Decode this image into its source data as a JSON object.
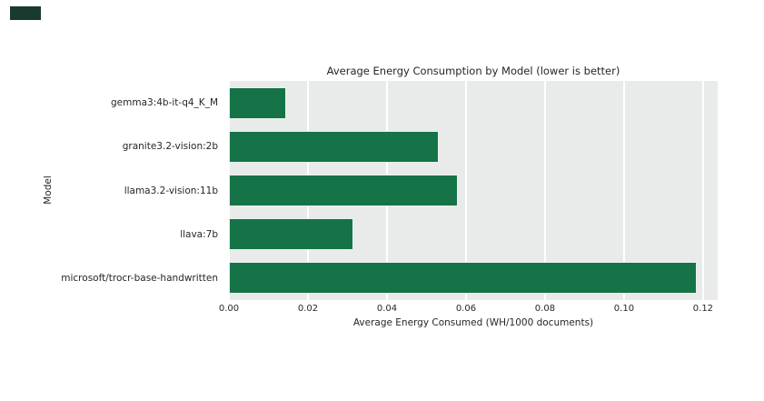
{
  "figure": {
    "background": "#ffffff",
    "corner_mark_color": "#1b3a2e"
  },
  "chart_data": {
    "type": "bar",
    "orientation": "horizontal",
    "title": "Average Energy Consumption by Model (lower is better)",
    "categories": [
      "gemma3:4b-it-q4_K_M",
      "granite3.2-vision:2b",
      "llama3.2-vision:11b",
      "llava:7b",
      "microsoft/trocr-base-handwritten"
    ],
    "values": [
      0.0145,
      0.053,
      0.058,
      0.0315,
      0.1185
    ],
    "xlabel": "Average Energy Consumed (WH/1000 documents)",
    "ylabel": "Model",
    "xticks": [
      0.0,
      0.02,
      0.04,
      0.06,
      0.08,
      0.1,
      0.12
    ],
    "xlim": [
      0,
      0.1237
    ],
    "grid": true,
    "legend_position": "none",
    "colors": {
      "bar": "#157347",
      "plot_bg": "#e8ebe9",
      "grid": "#ffffff",
      "text": "#262626"
    }
  }
}
